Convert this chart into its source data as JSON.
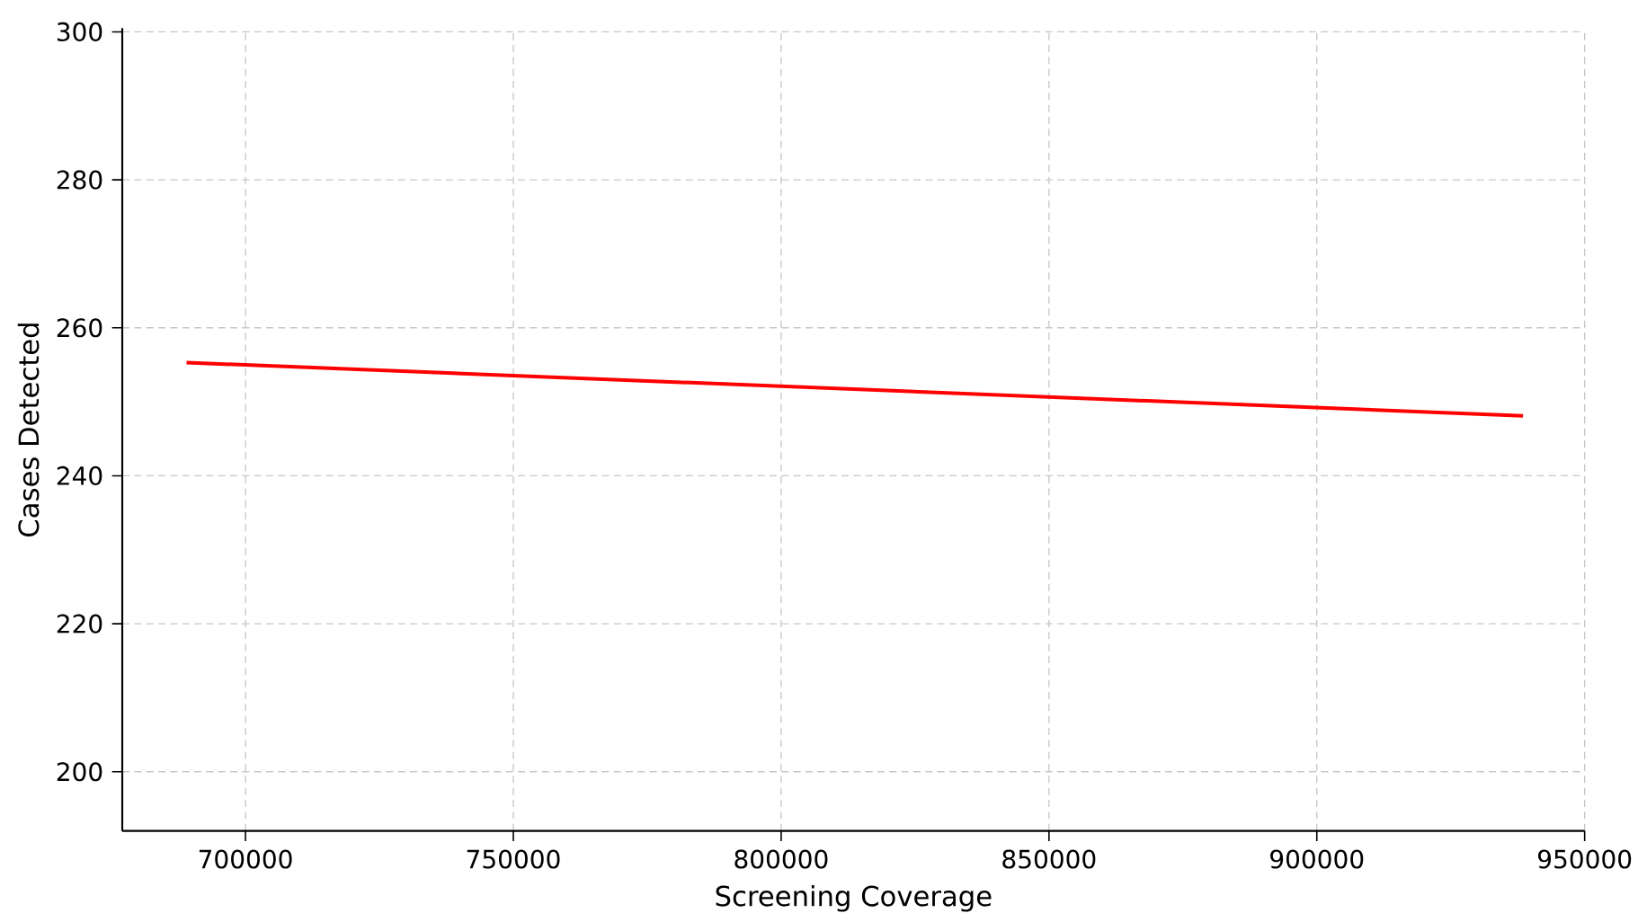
{
  "chart_data": {
    "type": "line",
    "xlabel": "Screening Coverage",
    "ylabel": "Cases Detected",
    "series": [
      {
        "color": "#ff0000",
        "x": [
          689000,
          938500
        ],
        "values": [
          255.3,
          248.1
        ]
      }
    ],
    "xlim": [
      677000,
      950000
    ],
    "xticks": [
      700000,
      750000,
      800000,
      850000,
      900000,
      950000
    ],
    "ylim": [
      192,
      300.5
    ],
    "yticks": [
      200,
      220,
      240,
      260,
      280,
      300
    ],
    "grid": true,
    "line_style": "solid",
    "marker": "none"
  }
}
